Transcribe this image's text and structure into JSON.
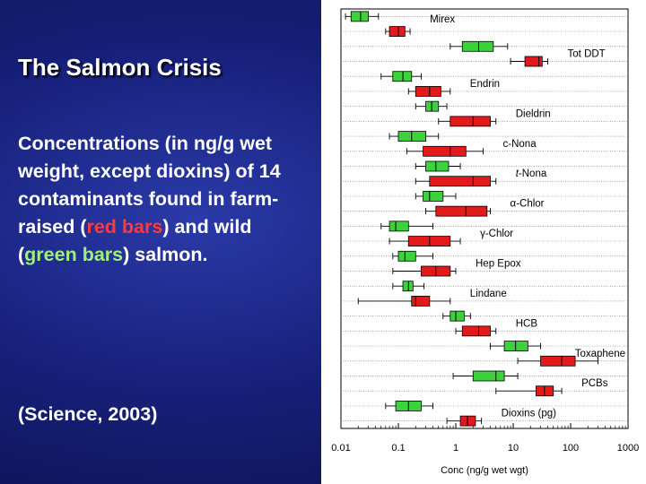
{
  "slide": {
    "title": "The Salmon Crisis",
    "body_parts": [
      "Concentrations (in ng/g wet weight, except dioxins) of 14 contaminants found in farm-raised (",
      "red bars",
      ") and wild (",
      "green bars",
      ") salmon."
    ],
    "citation": "(Science, 2003)"
  },
  "colors": {
    "farm": "#e31a1c",
    "wild": "#3cd23c",
    "background": "#17207a",
    "title_text": "#ffffff"
  },
  "chart_data": {
    "type": "box",
    "scale": "log",
    "xlabel": "Conc (ng/g wet wgt)",
    "xlim": [
      0.01,
      1000
    ],
    "ticks": [
      {
        "value": 0.01,
        "label": "0.01"
      },
      {
        "value": 0.1,
        "label": "0.1"
      },
      {
        "value": 1,
        "label": "1"
      },
      {
        "value": 10,
        "label": "10"
      },
      {
        "value": 100,
        "label": "100"
      },
      {
        "value": 1000,
        "label": "1000"
      }
    ],
    "series": [
      {
        "name": "Farm-raised",
        "color": "#e31a1c"
      },
      {
        "name": "Wild",
        "color": "#3cd23c"
      }
    ],
    "contaminants": [
      {
        "name": "Mirex",
        "prefix": "",
        "ital": "",
        "rest": "Mirex",
        "wild": [
          0.012,
          0.015,
          0.022,
          0.03,
          0.045
        ],
        "farm": [
          0.06,
          0.07,
          0.1,
          0.13,
          0.16
        ]
      },
      {
        "name": "Tot DDT",
        "prefix": "",
        "ital": "",
        "rest": "Tot DDT",
        "wild": [
          0.8,
          1.3,
          2.5,
          4.5,
          8
        ],
        "farm": [
          9,
          16,
          28,
          32,
          40
        ]
      },
      {
        "name": "Endrin",
        "prefix": "",
        "ital": "",
        "rest": "Endrin",
        "wild": [
          0.05,
          0.08,
          0.12,
          0.17,
          0.25
        ],
        "farm": [
          0.15,
          0.2,
          0.35,
          0.55,
          0.8
        ]
      },
      {
        "name": "Dieldrin",
        "prefix": "",
        "ital": "",
        "rest": "Dieldrin",
        "wild": [
          0.2,
          0.3,
          0.38,
          0.5,
          0.7
        ],
        "farm": [
          0.5,
          0.8,
          2,
          4,
          5
        ]
      },
      {
        "name": "c-Nona",
        "prefix": "",
        "ital": "",
        "rest": "c-Nona",
        "wild": [
          0.07,
          0.1,
          0.17,
          0.3,
          0.5
        ],
        "farm": [
          0.14,
          0.27,
          0.8,
          1.5,
          3
        ]
      },
      {
        "name": "t-Nona",
        "prefix": "",
        "ital": "t",
        "rest": "-Nona",
        "wild": [
          0.2,
          0.3,
          0.45,
          0.75,
          1.2
        ],
        "farm": [
          0.2,
          0.35,
          2,
          4,
          5
        ]
      },
      {
        "name": "α-Chlor",
        "prefix": "α",
        "ital": "",
        "rest": "-Chlor",
        "wild": [
          0.2,
          0.27,
          0.35,
          0.6,
          1
        ],
        "farm": [
          0.3,
          0.45,
          1.5,
          3.5,
          4
        ]
      },
      {
        "name": "γ-Chlor",
        "prefix": "γ",
        "ital": "",
        "rest": "-Chlor",
        "wild": [
          0.05,
          0.07,
          0.09,
          0.15,
          0.4
        ],
        "farm": [
          0.07,
          0.15,
          0.35,
          0.8,
          1.2
        ]
      },
      {
        "name": "Hep Epox",
        "prefix": "",
        "ital": "",
        "rest": "Hep Epox",
        "wild": [
          0.08,
          0.1,
          0.13,
          0.2,
          0.4
        ],
        "farm": [
          0.08,
          0.25,
          0.45,
          0.8,
          1
        ]
      },
      {
        "name": "Lindane",
        "prefix": "",
        "ital": "",
        "rest": "Lindane",
        "wild": [
          0.08,
          0.12,
          0.15,
          0.18,
          0.28
        ],
        "farm": [
          0.02,
          0.17,
          0.2,
          0.35,
          0.8
        ]
      },
      {
        "name": "HCB",
        "prefix": "",
        "ital": "",
        "rest": "HCB",
        "wild": [
          0.6,
          0.8,
          1,
          1.4,
          1.8
        ],
        "farm": [
          1,
          1.3,
          2.5,
          4,
          5
        ]
      },
      {
        "name": "Toxaphene",
        "prefix": "",
        "ital": "",
        "rest": "Toxaphene",
        "wild": [
          4,
          7,
          11,
          18,
          30
        ],
        "farm": [
          12,
          30,
          70,
          120,
          300
        ]
      },
      {
        "name": "PCBs",
        "prefix": "",
        "ital": "",
        "rest": "PCBs",
        "wild": [
          0.9,
          2,
          5,
          7,
          12
        ],
        "farm": [
          5,
          25,
          35,
          50,
          70
        ]
      },
      {
        "name": "Dioxins (pg)",
        "prefix": "",
        "ital": "",
        "rest": "Dioxins (pg)",
        "wild": [
          0.06,
          0.09,
          0.15,
          0.25,
          0.4
        ],
        "farm": [
          0.7,
          1.2,
          1.6,
          2.2,
          2.8
        ]
      }
    ]
  }
}
